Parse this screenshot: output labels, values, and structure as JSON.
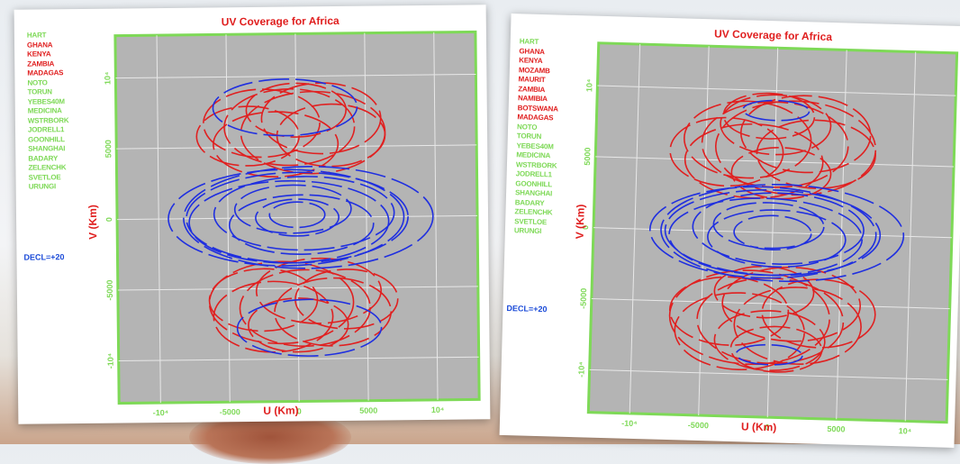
{
  "colors": {
    "red": "#e02020",
    "blue": "#1f2fe0",
    "green": "#7ed957",
    "panel": "#b4b4b4",
    "frame": "#7ed957"
  },
  "chart_data": [
    {
      "type": "scatter",
      "title": "UV Coverage for Africa",
      "xlabel": "U (Km)",
      "ylabel": "V (Km)",
      "xlim": [
        -13000,
        13000
      ],
      "ylim": [
        -13000,
        13000
      ],
      "grid": true,
      "x_ticks": [
        "-10⁴",
        "-5000",
        "0",
        "5000",
        "10⁴"
      ],
      "y_ticks": [
        "10⁴",
        "5000",
        "0",
        "-5000",
        "-10⁴"
      ],
      "legend_title": "DECL=+20",
      "stations": [
        {
          "name": "HART",
          "group": "green"
        },
        {
          "name": "GHANA",
          "group": "red"
        },
        {
          "name": "KENYA",
          "group": "red"
        },
        {
          "name": "ZAMBIA",
          "group": "red"
        },
        {
          "name": "MADAGAS",
          "group": "red"
        },
        {
          "name": "NOTO",
          "group": "green"
        },
        {
          "name": "TORUN",
          "group": "green"
        },
        {
          "name": "YEBES40M",
          "group": "green"
        },
        {
          "name": "MEDICINA",
          "group": "green"
        },
        {
          "name": "WSTRBORK",
          "group": "green"
        },
        {
          "name": "JODRELL1",
          "group": "green"
        },
        {
          "name": "GOONHILL",
          "group": "green"
        },
        {
          "name": "SHANGHAI",
          "group": "green"
        },
        {
          "name": "BADARY",
          "group": "green"
        },
        {
          "name": "ZELENCHK",
          "group": "green"
        },
        {
          "name": "SVETLOE",
          "group": "green"
        },
        {
          "name": "URUNGI",
          "group": "green"
        }
      ],
      "series": [
        {
          "name": "red",
          "rings": [
            {
              "x": -2500,
              "y": 6700,
              "a": 4200,
              "b": 2400
            },
            {
              "x": -500,
              "y": 6400,
              "a": 4700,
              "b": 2700
            },
            {
              "x": 1200,
              "y": 6000,
              "a": 5200,
              "b": 2900
            },
            {
              "x": 2500,
              "y": 5800,
              "a": 3900,
              "b": 2200
            },
            {
              "x": 0,
              "y": 7600,
              "a": 3600,
              "b": 1900
            },
            {
              "x": -1500,
              "y": 5200,
              "a": 4500,
              "b": 2300
            },
            {
              "x": 1800,
              "y": 7000,
              "a": 4300,
              "b": 2500
            },
            {
              "x": -3500,
              "y": 5800,
              "a": 3700,
              "b": 2100
            },
            {
              "x": 2500,
              "y": -6700,
              "a": 4200,
              "b": 2400
            },
            {
              "x": 500,
              "y": -6400,
              "a": 4700,
              "b": 2700
            },
            {
              "x": -1200,
              "y": -6000,
              "a": 5200,
              "b": 2900
            },
            {
              "x": -2500,
              "y": -5800,
              "a": 3900,
              "b": 2200
            },
            {
              "x": 0,
              "y": -7600,
              "a": 3600,
              "b": 1900
            },
            {
              "x": 1500,
              "y": -5200,
              "a": 4500,
              "b": 2300
            },
            {
              "x": -1800,
              "y": -7000,
              "a": 4300,
              "b": 2500
            },
            {
              "x": 3500,
              "y": -5800,
              "a": 3700,
              "b": 2100
            }
          ]
        },
        {
          "name": "blue",
          "rings": [
            {
              "x": 0,
              "y": 0,
              "a": 8000,
              "b": 3200
            },
            {
              "x": 500,
              "y": 300,
              "a": 6500,
              "b": 2600
            },
            {
              "x": -600,
              "y": -300,
              "a": 7200,
              "b": 2900
            },
            {
              "x": 300,
              "y": -500,
              "a": 5200,
              "b": 2100
            },
            {
              "x": -300,
              "y": 600,
              "a": 4200,
              "b": 1700
            },
            {
              "x": 0,
              "y": 0,
              "a": 3000,
              "b": 1300
            },
            {
              "x": 800,
              "y": 0,
              "a": 9000,
              "b": 3600
            },
            {
              "x": -800,
              "y": 0,
              "a": 8500,
              "b": 3400
            },
            {
              "x": 0,
              "y": 200,
              "a": 2000,
              "b": 900
            },
            {
              "x": -800,
              "y": 7800,
              "a": 5200,
              "b": 2000
            },
            {
              "x": 800,
              "y": -7800,
              "a": 5200,
              "b": 2000
            }
          ]
        }
      ]
    },
    {
      "type": "scatter",
      "title": "UV Coverage for Africa",
      "xlabel": "U (Km)",
      "ylabel": "V (Km)",
      "xlim": [
        -13000,
        13000
      ],
      "ylim": [
        -13000,
        13000
      ],
      "grid": true,
      "x_ticks": [
        "-10⁴",
        "-5000",
        "0",
        "5000",
        "10⁴"
      ],
      "y_ticks": [
        "10⁴",
        "5000",
        "0",
        "-5000",
        "-10⁴"
      ],
      "legend_title": "DECL=+20",
      "stations": [
        {
          "name": "HART",
          "group": "green"
        },
        {
          "name": "GHANA",
          "group": "red"
        },
        {
          "name": "KENYA",
          "group": "red"
        },
        {
          "name": "MOZAMB",
          "group": "red"
        },
        {
          "name": "MAURIT",
          "group": "red"
        },
        {
          "name": "ZAMBIA",
          "group": "red"
        },
        {
          "name": "NAMIBIA",
          "group": "red"
        },
        {
          "name": "BOTSWANA",
          "group": "red"
        },
        {
          "name": "MADAGAS",
          "group": "red"
        },
        {
          "name": "NOTO",
          "group": "green"
        },
        {
          "name": "TORUN",
          "group": "green"
        },
        {
          "name": "YEBES40M",
          "group": "green"
        },
        {
          "name": "MEDICINA",
          "group": "green"
        },
        {
          "name": "WSTRBORK",
          "group": "green"
        },
        {
          "name": "JODRELL1",
          "group": "green"
        },
        {
          "name": "GOONHILL",
          "group": "green"
        },
        {
          "name": "SHANGHAI",
          "group": "green"
        },
        {
          "name": "BADARY",
          "group": "green"
        },
        {
          "name": "ZELENCHK",
          "group": "green"
        },
        {
          "name": "SVETLOE",
          "group": "green"
        },
        {
          "name": "URUNGI",
          "group": "green"
        }
      ],
      "series": [
        {
          "name": "red",
          "rings": [
            {
              "x": -2000,
              "y": 6500,
              "a": 4600,
              "b": 2700
            },
            {
              "x": 0,
              "y": 6200,
              "a": 5300,
              "b": 3000
            },
            {
              "x": 1500,
              "y": 6000,
              "a": 5800,
              "b": 3300
            },
            {
              "x": 3000,
              "y": 5600,
              "a": 4300,
              "b": 2400
            },
            {
              "x": 0,
              "y": 7600,
              "a": 4000,
              "b": 2100
            },
            {
              "x": -1500,
              "y": 5000,
              "a": 5000,
              "b": 2600
            },
            {
              "x": 2200,
              "y": 7000,
              "a": 4700,
              "b": 2700
            },
            {
              "x": -3500,
              "y": 5600,
              "a": 4100,
              "b": 2400
            },
            {
              "x": 500,
              "y": 4200,
              "a": 3600,
              "b": 1800
            },
            {
              "x": -500,
              "y": 8200,
              "a": 3300,
              "b": 1600
            },
            {
              "x": 2000,
              "y": -6500,
              "a": 4600,
              "b": 2700
            },
            {
              "x": 0,
              "y": -6200,
              "a": 5300,
              "b": 3000
            },
            {
              "x": -1500,
              "y": -6000,
              "a": 5800,
              "b": 3300
            },
            {
              "x": -3000,
              "y": -5600,
              "a": 4300,
              "b": 2400
            },
            {
              "x": 0,
              "y": -7600,
              "a": 4000,
              "b": 2100
            },
            {
              "x": 1500,
              "y": -5000,
              "a": 5000,
              "b": 2600
            },
            {
              "x": -2200,
              "y": -7000,
              "a": 4700,
              "b": 2700
            },
            {
              "x": 3500,
              "y": -5600,
              "a": 4100,
              "b": 2400
            },
            {
              "x": -500,
              "y": -4200,
              "a": 3600,
              "b": 1800
            },
            {
              "x": 500,
              "y": -8200,
              "a": 3300,
              "b": 1600
            }
          ]
        },
        {
          "name": "blue",
          "rings": [
            {
              "x": 0,
              "y": 0,
              "a": 7800,
              "b": 3000
            },
            {
              "x": 400,
              "y": 300,
              "a": 6200,
              "b": 2500
            },
            {
              "x": -500,
              "y": -300,
              "a": 7000,
              "b": 2700
            },
            {
              "x": 300,
              "y": -400,
              "a": 5000,
              "b": 2000
            },
            {
              "x": -300,
              "y": 500,
              "a": 4000,
              "b": 1600
            },
            {
              "x": 0,
              "y": 0,
              "a": 2800,
              "b": 1200
            },
            {
              "x": 700,
              "y": 0,
              "a": 8800,
              "b": 3400
            },
            {
              "x": -700,
              "y": 0,
              "a": 8200,
              "b": 3200
            },
            {
              "x": 0,
              "y": 8600,
              "a": 2400,
              "b": 700
            },
            {
              "x": 0,
              "y": -8600,
              "a": 2400,
              "b": 700
            }
          ]
        }
      ]
    }
  ]
}
